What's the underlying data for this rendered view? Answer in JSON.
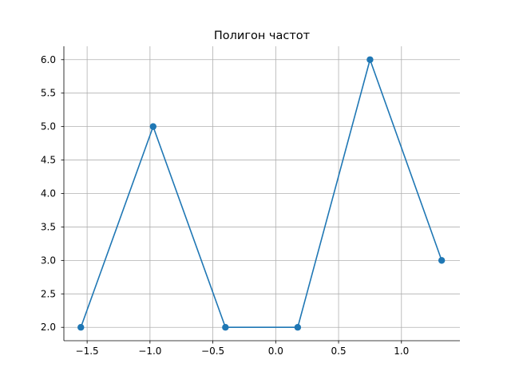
{
  "chart_data": {
    "type": "line",
    "title": "Полигон частот",
    "xlabel": "",
    "ylabel": "",
    "xlim": [
      -1.685,
      1.465
    ],
    "ylim": [
      1.8,
      6.2
    ],
    "grid": true,
    "x_ticks": [
      {
        "value": -1.5,
        "label": "−1.5"
      },
      {
        "value": -1.0,
        "label": "−1.0"
      },
      {
        "value": -0.5,
        "label": "−0.5"
      },
      {
        "value": 0.0,
        "label": "0.0"
      },
      {
        "value": 0.5,
        "label": "0.5"
      },
      {
        "value": 1.0,
        "label": "1.0"
      }
    ],
    "y_ticks": [
      {
        "value": 2.0,
        "label": "2.0"
      },
      {
        "value": 2.5,
        "label": "2.5"
      },
      {
        "value": 3.0,
        "label": "3.0"
      },
      {
        "value": 3.5,
        "label": "3.5"
      },
      {
        "value": 4.0,
        "label": "4.0"
      },
      {
        "value": 4.5,
        "label": "4.5"
      },
      {
        "value": 5.0,
        "label": "5.0"
      },
      {
        "value": 5.5,
        "label": "5.5"
      },
      {
        "value": 6.0,
        "label": "6.0"
      }
    ],
    "series": [
      {
        "color": "#1f77b4",
        "marker": "circle",
        "x": [
          -1.55,
          -0.975,
          -0.4,
          0.175,
          0.75,
          1.32
        ],
        "y": [
          2,
          5,
          2,
          2,
          6,
          3
        ]
      }
    ]
  }
}
